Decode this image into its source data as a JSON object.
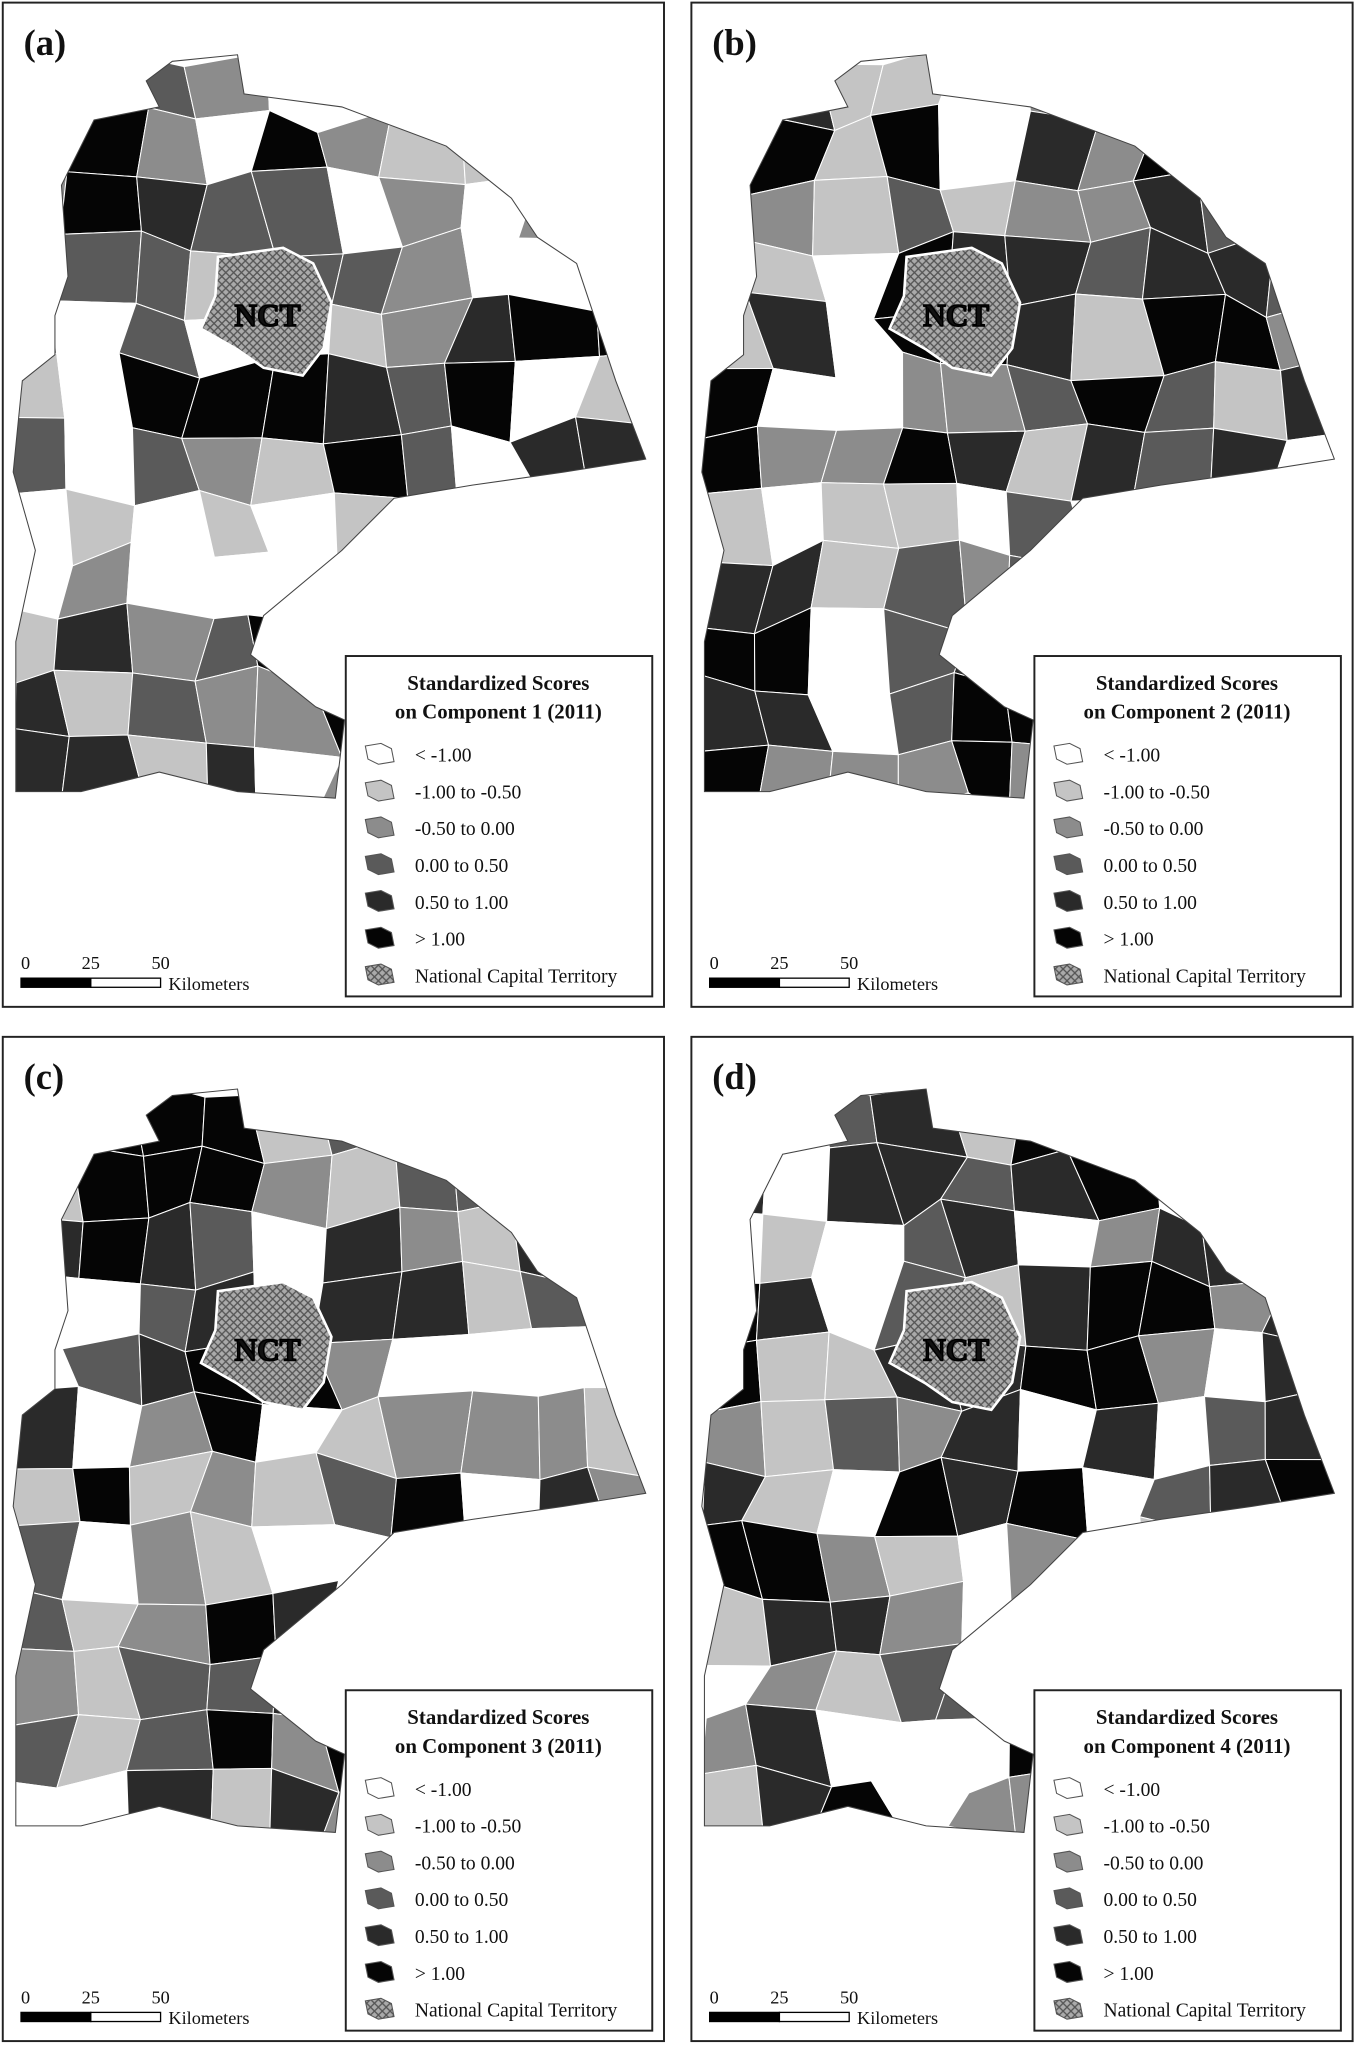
{
  "panels": [
    {
      "label": "(a)",
      "nct_label": "NCT",
      "legend": {
        "title": [
          "Standardized Scores",
          "on Component 1 (2011)"
        ],
        "items": [
          "< -1.00",
          "-1.00 to -0.50",
          "-0.50 to 0.00",
          "0.00 to 0.50",
          "0.50 to 1.00",
          "> 1.00",
          "National Capital Territory"
        ]
      },
      "scale_bar": {
        "ticks": [
          0,
          25,
          50
        ],
        "unit": "Kilometers"
      }
    },
    {
      "label": "(b)",
      "nct_label": "NCT",
      "legend": {
        "title": [
          "Standardized Scores",
          "on Component 2 (2011)"
        ],
        "items": [
          "< -1.00",
          "-1.00 to -0.50",
          "-0.50 to 0.00",
          "0.00 to 0.50",
          "0.50 to 1.00",
          "> 1.00",
          "National Capital Territory"
        ]
      },
      "scale_bar": {
        "ticks": [
          0,
          25,
          50
        ],
        "unit": "Kilometers"
      }
    },
    {
      "label": "(c)",
      "nct_label": "NCT",
      "legend": {
        "title": [
          "Standardized Scores",
          "on Component 3 (2011)"
        ],
        "items": [
          "< -1.00",
          "-1.00 to -0.50",
          "-0.50 to 0.00",
          "0.00 to 0.50",
          "0.50 to 1.00",
          "> 1.00",
          "National Capital Territory"
        ]
      },
      "scale_bar": {
        "ticks": [
          0,
          25,
          50
        ],
        "unit": "Kilometers"
      }
    },
    {
      "label": "(d)",
      "nct_label": "NCT",
      "legend": {
        "title": [
          "Standardized Scores",
          "on Component 4 (2011)"
        ],
        "items": [
          "< -1.00",
          "-1.00 to -0.50",
          "-0.50 to 0.00",
          "0.00 to 0.50",
          "0.50 to 1.00",
          "> 1.00",
          "National Capital Territory"
        ]
      },
      "scale_bar": {
        "ticks": [
          0,
          25,
          50
        ],
        "unit": "Kilometers"
      }
    }
  ]
}
